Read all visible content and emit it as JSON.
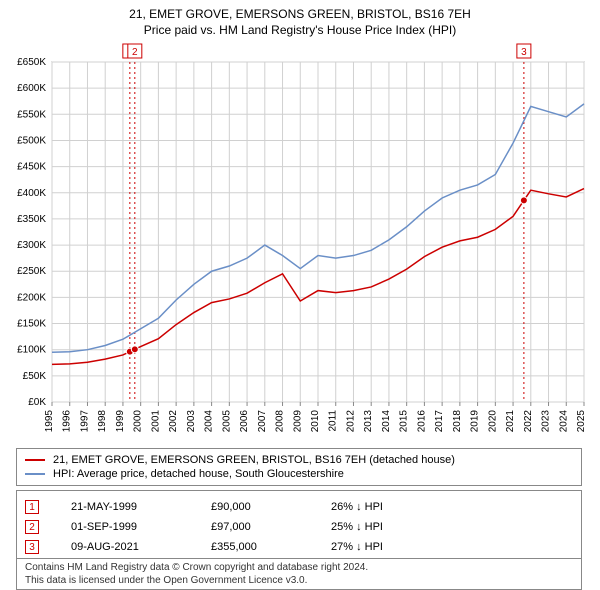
{
  "chart": {
    "title": "21, EMET GROVE, EMERSONS GREEN, BRISTOL, BS16 7EH",
    "subtitle": "Price paid vs. HM Land Registry's House Price Index (HPI)",
    "xlim": [
      1995,
      2025
    ],
    "ylim": [
      0,
      650000
    ],
    "ytick_step": 50000,
    "xtick_step": 1,
    "background_color": "#ffffff",
    "grid_color": "#d0d0d0",
    "axis_color": "#888888",
    "marker_border_color": "#cc0000",
    "marker_dash_color": "#cc0000",
    "marker_fill": "#ffffff",
    "label_fontsize": 11,
    "tick_fontsize": 10,
    "y_prefix": "£",
    "y_suffix": "K",
    "series": [
      {
        "name": "HPI: Average price, detached house, South Gloucestershire",
        "color": "#6a8fc7",
        "width": 1.5,
        "data": [
          [
            1995,
            95000
          ],
          [
            1996,
            96000
          ],
          [
            1997,
            100000
          ],
          [
            1998,
            108000
          ],
          [
            1999,
            120000
          ],
          [
            2000,
            140000
          ],
          [
            2001,
            160000
          ],
          [
            2002,
            195000
          ],
          [
            2003,
            225000
          ],
          [
            2004,
            250000
          ],
          [
            2005,
            260000
          ],
          [
            2006,
            275000
          ],
          [
            2007,
            300000
          ],
          [
            2008,
            280000
          ],
          [
            2009,
            255000
          ],
          [
            2010,
            280000
          ],
          [
            2011,
            275000
          ],
          [
            2012,
            280000
          ],
          [
            2013,
            290000
          ],
          [
            2014,
            310000
          ],
          [
            2015,
            335000
          ],
          [
            2016,
            365000
          ],
          [
            2017,
            390000
          ],
          [
            2018,
            405000
          ],
          [
            2019,
            415000
          ],
          [
            2020,
            435000
          ],
          [
            2021,
            495000
          ],
          [
            2022,
            565000
          ],
          [
            2023,
            555000
          ],
          [
            2024,
            545000
          ],
          [
            2025,
            570000
          ]
        ]
      },
      {
        "name": "21, EMET GROVE, EMERSONS GREEN, BRISTOL, BS16 7EH (detached house)",
        "color": "#cc0000",
        "width": 1.5,
        "data": [
          [
            1995,
            72000
          ],
          [
            1996,
            73000
          ],
          [
            1997,
            76000
          ],
          [
            1998,
            82000
          ],
          [
            1999,
            90000
          ],
          [
            2000,
            106000
          ],
          [
            2001,
            121000
          ],
          [
            2002,
            148000
          ],
          [
            2003,
            171000
          ],
          [
            2004,
            190000
          ],
          [
            2005,
            197000
          ],
          [
            2006,
            208000
          ],
          [
            2007,
            228000
          ],
          [
            2008,
            245000
          ],
          [
            2009,
            193000
          ],
          [
            2010,
            213000
          ],
          [
            2011,
            209000
          ],
          [
            2012,
            213000
          ],
          [
            2013,
            220000
          ],
          [
            2014,
            235000
          ],
          [
            2015,
            254000
          ],
          [
            2016,
            278000
          ],
          [
            2017,
            296000
          ],
          [
            2018,
            308000
          ],
          [
            2019,
            315000
          ],
          [
            2020,
            330000
          ],
          [
            2021,
            355000
          ],
          [
            2022,
            405000
          ],
          [
            2023,
            398000
          ],
          [
            2024,
            392000
          ],
          [
            2025,
            408000
          ]
        ]
      }
    ],
    "markers": [
      {
        "num": "1",
        "x": 1999.39
      },
      {
        "num": "2",
        "x": 1999.67
      },
      {
        "num": "3",
        "x": 2021.61
      }
    ]
  },
  "legend": {
    "items": [
      {
        "color": "#cc0000",
        "label": "21, EMET GROVE, EMERSONS GREEN, BRISTOL, BS16 7EH (detached house)"
      },
      {
        "color": "#6a8fc7",
        "label": "HPI: Average price, detached house, South Gloucestershire"
      }
    ]
  },
  "events": [
    {
      "num": "1",
      "date": "21-MAY-1999",
      "price": "£90,000",
      "delta": "26% ↓ HPI"
    },
    {
      "num": "2",
      "date": "01-SEP-1999",
      "price": "£97,000",
      "delta": "25% ↓ HPI"
    },
    {
      "num": "3",
      "date": "09-AUG-2021",
      "price": "£355,000",
      "delta": "27% ↓ HPI"
    }
  ],
  "attribution": {
    "line1": "Contains HM Land Registry data © Crown copyright and database right 2024.",
    "line2": "This data is licensed under the Open Government Licence v3.0."
  }
}
